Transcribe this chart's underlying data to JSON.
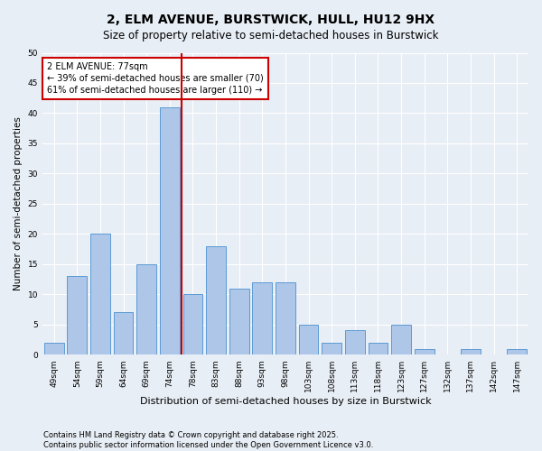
{
  "title": "2, ELM AVENUE, BURSTWICK, HULL, HU12 9HX",
  "subtitle": "Size of property relative to semi-detached houses in Burstwick",
  "xlabel": "Distribution of semi-detached houses by size in Burstwick",
  "ylabel": "Number of semi-detached properties",
  "categories": [
    "49sqm",
    "54sqm",
    "59sqm",
    "64sqm",
    "69sqm",
    "74sqm",
    "78sqm",
    "83sqm",
    "88sqm",
    "93sqm",
    "98sqm",
    "103sqm",
    "108sqm",
    "113sqm",
    "118sqm",
    "123sqm",
    "127sqm",
    "132sqm",
    "137sqm",
    "142sqm",
    "147sqm"
  ],
  "values": [
    2,
    13,
    20,
    7,
    15,
    41,
    10,
    18,
    11,
    12,
    12,
    5,
    2,
    4,
    2,
    5,
    1,
    0,
    1,
    0,
    1
  ],
  "bar_color": "#aec6e8",
  "bar_edge_color": "#5b9bd5",
  "highlight_line_color": "#cc0000",
  "annotation_text": "2 ELM AVENUE: 77sqm\n← 39% of semi-detached houses are smaller (70)\n61% of semi-detached houses are larger (110) →",
  "annotation_box_edge_color": "#cc0000",
  "background_color": "#e8eef5",
  "plot_bg_color": "#e8eef5",
  "grid_color": "#ffffff",
  "ylim": [
    0,
    50
  ],
  "yticks": [
    0,
    5,
    10,
    15,
    20,
    25,
    30,
    35,
    40,
    45,
    50
  ],
  "footnote": "Contains HM Land Registry data © Crown copyright and database right 2025.\nContains public sector information licensed under the Open Government Licence v3.0.",
  "title_fontsize": 10,
  "subtitle_fontsize": 8.5,
  "xlabel_fontsize": 8,
  "ylabel_fontsize": 7.5,
  "tick_fontsize": 6.5,
  "annotation_fontsize": 7,
  "footnote_fontsize": 6
}
